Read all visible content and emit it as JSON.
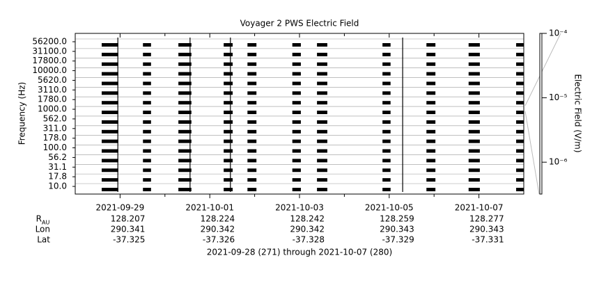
{
  "chart_data": {
    "type": "spectrogram",
    "title": "Voyager 2 PWS Electric Field",
    "y_label": "Frequency (Hz)",
    "categories": [
      "10.0",
      "17.8",
      "31.1",
      "56.2",
      "100.0",
      "178.0",
      "311.0",
      "562.0",
      "1000.0",
      "1780.0",
      "3110.0",
      "5620.0",
      "10000.0",
      "17800.0",
      "31100.0",
      "56200.0"
    ],
    "xlim": [
      271,
      281
    ],
    "xticks": [
      {
        "value": 272,
        "label": "2021-09-29"
      },
      {
        "value": 274,
        "label": "2021-10-01"
      },
      {
        "value": 276,
        "label": "2021-10-03"
      },
      {
        "value": 278,
        "label": "2021-10-05"
      },
      {
        "value": 280,
        "label": "2021-10-07"
      }
    ],
    "xminor_ticks": [
      273,
      275,
      277,
      279
    ],
    "bursts": [
      [
        271.59,
        271.96
      ],
      [
        272.51,
        272.69
      ],
      [
        273.3,
        273.59
      ],
      [
        274.31,
        274.51
      ],
      [
        274.84,
        275.04
      ],
      [
        275.84,
        276.03
      ],
      [
        276.39,
        276.62
      ],
      [
        277.85,
        278.03
      ],
      [
        278.83,
        279.03
      ],
      [
        279.77,
        280.02
      ],
      [
        280.83,
        281.0
      ]
    ],
    "spikes": [
      271.95,
      273.56,
      274.46,
      278.3
    ],
    "color": "#000000",
    "grid": true,
    "colorbar": {
      "label": "Electric Field (V/m)",
      "log": true,
      "lim": [
        3.2e-07,
        0.0001
      ],
      "ticks": [
        {
          "value": 0.0001,
          "label": "10⁻⁴"
        },
        {
          "value": 1e-05,
          "label": "10⁻⁵"
        },
        {
          "value": 1e-06,
          "label": "10⁻⁶"
        }
      ]
    },
    "ephemeris": [
      {
        "label": "R",
        "subscript": "AU",
        "values": [
          128.207,
          128.224,
          128.242,
          128.259,
          128.277
        ]
      },
      {
        "label": "Lon",
        "values": [
          290.341,
          290.342,
          290.342,
          290.343,
          290.343
        ]
      },
      {
        "label": "Lat",
        "values": [
          -37.325,
          -37.326,
          -37.328,
          -37.329,
          -37.331
        ]
      }
    ],
    "footer": "2021-09-28 (271) through 2021-10-07 (280)"
  }
}
